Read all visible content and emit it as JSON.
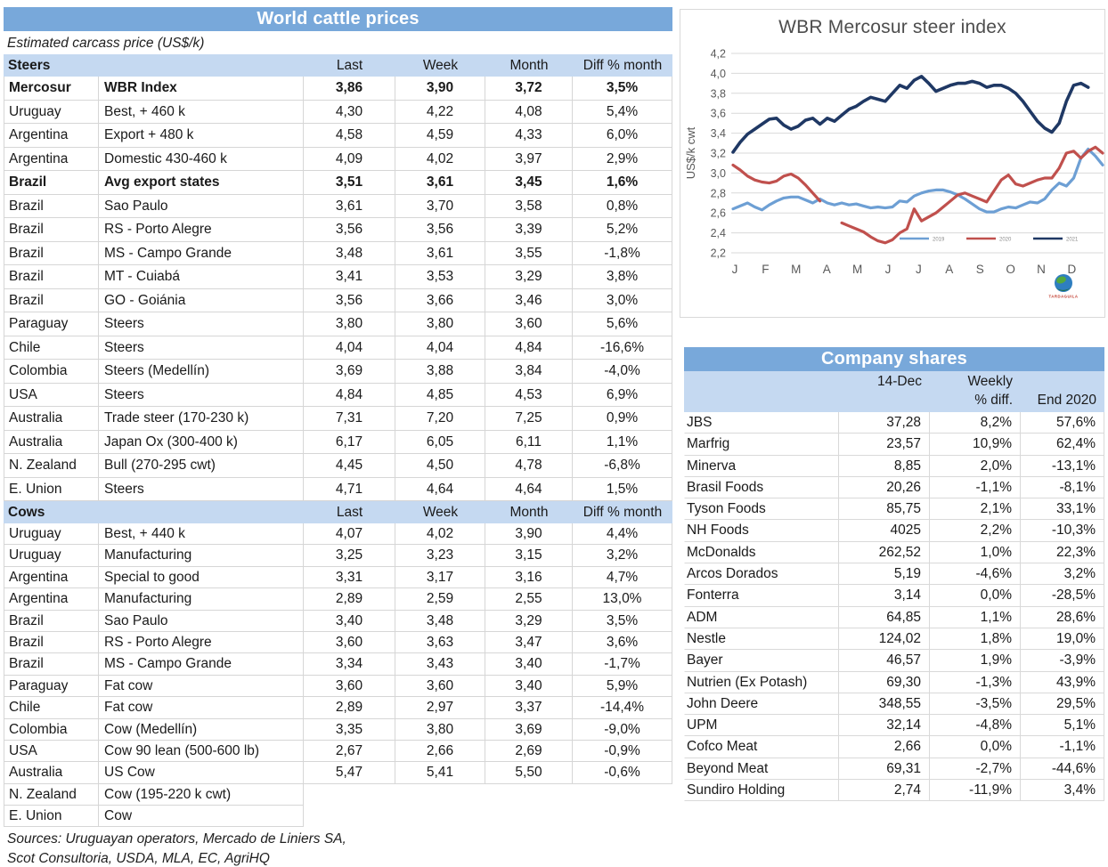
{
  "colors": {
    "title_bar": "#78A8DA",
    "section_header": "#C5D9F1",
    "table_border": "#D6D6D6",
    "chart_grid": "#D9D9D9",
    "chart_text": "#595959",
    "legend_text": "#8A8A8A",
    "logo_caption_color": "#C0392B"
  },
  "cattle": {
    "title": "World cattle prices",
    "subtitle": "Estimated carcass price (US$/k)",
    "value_columns": [
      "Last",
      "Week",
      "Month",
      "Diff % month"
    ],
    "sections": [
      {
        "label": "Steers",
        "rows": [
          {
            "c": "Mercosur",
            "d": "WBR Index",
            "v": [
              "3,86",
              "3,90",
              "3,72",
              "3,5%"
            ],
            "bold": true
          },
          {
            "c": "Uruguay",
            "d": "Best, + 460 k",
            "v": [
              "4,30",
              "4,22",
              "4,08",
              "5,4%"
            ]
          },
          {
            "c": "Argentina",
            "d": "Export + 480 k",
            "v": [
              "4,58",
              "4,59",
              "4,33",
              "6,0%"
            ]
          },
          {
            "c": "Argentina",
            "d": "Domestic 430-460 k",
            "v": [
              "4,09",
              "4,02",
              "3,97",
              "2,9%"
            ]
          },
          {
            "c": "Brazil",
            "d": "Avg export states",
            "v": [
              "3,51",
              "3,61",
              "3,45",
              "1,6%"
            ],
            "bold": true
          },
          {
            "c": "Brazil",
            "d": "Sao Paulo",
            "v": [
              "3,61",
              "3,70",
              "3,58",
              "0,8%"
            ]
          },
          {
            "c": "Brazil",
            "d": "RS - Porto Alegre",
            "v": [
              "3,56",
              "3,56",
              "3,39",
              "5,2%"
            ]
          },
          {
            "c": "Brazil",
            "d": "MS - Campo Grande",
            "v": [
              "3,48",
              "3,61",
              "3,55",
              "-1,8%"
            ]
          },
          {
            "c": "Brazil",
            "d": "MT - Cuiabá",
            "v": [
              "3,41",
              "3,53",
              "3,29",
              "3,8%"
            ]
          },
          {
            "c": "Brazil",
            "d": "GO - Goiánia",
            "v": [
              "3,56",
              "3,66",
              "3,46",
              "3,0%"
            ]
          },
          {
            "c": "Paraguay",
            "d": "Steers",
            "v": [
              "3,80",
              "3,80",
              "3,60",
              "5,6%"
            ]
          },
          {
            "c": "Chile",
            "d": "Steers",
            "v": [
              "4,04",
              "4,04",
              "4,84",
              "-16,6%"
            ]
          },
          {
            "c": "Colombia",
            "d": "Steers (Medellín)",
            "v": [
              "3,69",
              "3,88",
              "3,84",
              "-4,0%"
            ]
          },
          {
            "c": "USA",
            "d": "Steers",
            "v": [
              "4,84",
              "4,85",
              "4,53",
              "6,9%"
            ]
          },
          {
            "c": "Australia",
            "d": "Trade steer (170-230 k)",
            "v": [
              "7,31",
              "7,20",
              "7,25",
              "0,9%"
            ]
          },
          {
            "c": "Australia",
            "d": "Japan Ox (300-400 k)",
            "v": [
              "6,17",
              "6,05",
              "6,11",
              "1,1%"
            ]
          },
          {
            "c": "N. Zealand",
            "d": "Bull (270-295 cwt)",
            "v": [
              "4,45",
              "4,50",
              "4,78",
              "-6,8%"
            ]
          },
          {
            "c": "E. Union",
            "d": "Steers",
            "v": [
              "4,71",
              "4,64",
              "4,64",
              "1,5%"
            ]
          }
        ]
      },
      {
        "label": "Cows",
        "rows": [
          {
            "c": "Uruguay",
            "d": "Best, + 440 k",
            "v": [
              "4,07",
              "4,02",
              "3,90",
              "4,4%"
            ]
          },
          {
            "c": "Uruguay",
            "d": "Manufacturing",
            "v": [
              "3,25",
              "3,23",
              "3,15",
              "3,2%"
            ]
          },
          {
            "c": "Argentina",
            "d": "Special to good",
            "v": [
              "3,31",
              "3,17",
              "3,16",
              "4,7%"
            ]
          },
          {
            "c": "Argentina",
            "d": "Manufacturing",
            "v": [
              "2,89",
              "2,59",
              "2,55",
              "13,0%"
            ]
          },
          {
            "c": "Brazil",
            "d": "Sao Paulo",
            "v": [
              "3,40",
              "3,48",
              "3,29",
              "3,5%"
            ]
          },
          {
            "c": "Brazil",
            "d": "RS - Porto Alegre",
            "v": [
              "3,60",
              "3,63",
              "3,47",
              "3,6%"
            ]
          },
          {
            "c": "Brazil",
            "d": "MS - Campo Grande",
            "v": [
              "3,34",
              "3,43",
              "3,40",
              "-1,7%"
            ]
          },
          {
            "c": "Paraguay",
            "d": "Fat cow",
            "v": [
              "3,60",
              "3,60",
              "3,40",
              "5,9%"
            ]
          },
          {
            "c": "Chile",
            "d": "Fat cow",
            "v": [
              "2,89",
              "2,97",
              "3,37",
              "-14,4%"
            ]
          },
          {
            "c": "Colombia",
            "d": "Cow (Medellín)",
            "v": [
              "3,35",
              "3,80",
              "3,69",
              "-9,0%"
            ]
          },
          {
            "c": "USA",
            "d": "Cow 90 lean (500-600 lb)",
            "v": [
              "2,67",
              "2,66",
              "2,69",
              "-0,9%"
            ]
          },
          {
            "c": "Australia",
            "d": "US Cow",
            "v": [
              "5,47",
              "5,41",
              "5,50",
              "-0,6%"
            ]
          },
          {
            "c": "N. Zealand",
            "d": "Cow (195-220 k cwt)",
            "v": [
              "",
              "",
              "",
              ""
            ],
            "partial": true
          },
          {
            "c": "E. Union",
            "d": "Cow",
            "v": [
              "",
              "",
              "",
              ""
            ],
            "partial": true
          }
        ]
      }
    ],
    "sources": [
      "Sources: Uruguayan operators, Mercado de Liniers SA,",
      "Scot Consultoria, USDA, MLA, EC, AgriHQ"
    ]
  },
  "chart_data": {
    "type": "line",
    "title": "WBR Mercosur steer index",
    "ylabel": "US$/k cwt",
    "ylim": [
      2.2,
      4.2
    ],
    "ytick_step": 0.2,
    "x_labels": [
      "J",
      "F",
      "M",
      "A",
      "M",
      "J",
      "J",
      "A",
      "S",
      "O",
      "N",
      "D"
    ],
    "grid": "horizontal",
    "legend_position": "bottom-right",
    "series": [
      {
        "name": "2019",
        "color": "#6D9FD4",
        "values": [
          2.64,
          2.67,
          2.7,
          2.66,
          2.63,
          2.68,
          2.72,
          2.75,
          2.76,
          2.76,
          2.73,
          2.7,
          2.74,
          2.7,
          2.68,
          2.7,
          2.68,
          2.69,
          2.67,
          2.65,
          2.66,
          2.65,
          2.66,
          2.72,
          2.71,
          2.77,
          2.8,
          2.82,
          2.83,
          2.83,
          2.81,
          2.78,
          2.74,
          2.69,
          2.64,
          2.61,
          2.61,
          2.64,
          2.66,
          2.65,
          2.68,
          2.71,
          2.7,
          2.74,
          2.83,
          2.9,
          2.87,
          2.95,
          3.15,
          3.24,
          3.17,
          3.08
        ]
      },
      {
        "name": "2020",
        "color": "#C0504D",
        "values": [
          3.08,
          3.03,
          2.97,
          2.93,
          2.91,
          2.9,
          2.92,
          2.97,
          2.99,
          2.95,
          2.88,
          2.8,
          2.72,
          null,
          null,
          2.5,
          2.47,
          2.44,
          2.41,
          2.36,
          2.32,
          2.3,
          2.33,
          2.4,
          2.44,
          2.64,
          2.52,
          2.56,
          2.6,
          2.66,
          2.72,
          2.78,
          2.8,
          2.77,
          2.74,
          2.71,
          2.82,
          2.93,
          2.98,
          2.89,
          2.87,
          2.9,
          2.93,
          2.95,
          2.95,
          3.05,
          3.2,
          3.22,
          3.15,
          3.22,
          3.26,
          3.2
        ]
      },
      {
        "name": "2021",
        "color": "#1F3864",
        "values": [
          3.21,
          3.31,
          3.39,
          3.44,
          3.49,
          3.54,
          3.55,
          3.48,
          3.44,
          3.47,
          3.53,
          3.55,
          3.49,
          3.55,
          3.52,
          3.58,
          3.64,
          3.67,
          3.72,
          3.76,
          3.74,
          3.72,
          3.8,
          3.88,
          3.85,
          3.93,
          3.97,
          3.9,
          3.82,
          3.85,
          3.88,
          3.9,
          3.9,
          3.92,
          3.9,
          3.86,
          3.88,
          3.88,
          3.85,
          3.8,
          3.72,
          3.62,
          3.52,
          3.45,
          3.41,
          3.5,
          3.72,
          3.88,
          3.9,
          3.86
        ]
      }
    ]
  },
  "company": {
    "title": "Company shares",
    "headers": {
      "date": "14-Dec",
      "weekly_top": "Weekly",
      "weekly_bottom": "% diff.",
      "end": "End 2020"
    },
    "rows": [
      [
        "JBS",
        "37,28",
        "8,2%",
        "57,6%"
      ],
      [
        "Marfrig",
        "23,57",
        "10,9%",
        "62,4%"
      ],
      [
        "Minerva",
        "8,85",
        "2,0%",
        "-13,1%"
      ],
      [
        "Brasil Foods",
        "20,26",
        "-1,1%",
        "-8,1%"
      ],
      [
        "Tyson Foods",
        "85,75",
        "2,1%",
        "33,1%"
      ],
      [
        "NH Foods",
        "4025",
        "2,2%",
        "-10,3%"
      ],
      [
        "McDonalds",
        "262,52",
        "1,0%",
        "22,3%"
      ],
      [
        "Arcos Dorados",
        "5,19",
        "-4,6%",
        "3,2%"
      ],
      [
        "Fonterra",
        "3,14",
        "0,0%",
        "-28,5%"
      ],
      [
        "ADM",
        "64,85",
        "1,1%",
        "28,6%"
      ],
      [
        "Nestle",
        "124,02",
        "1,8%",
        "19,0%"
      ],
      [
        "Bayer",
        "46,57",
        "1,9%",
        "-3,9%"
      ],
      [
        "Nutrien (Ex Potash)",
        "69,30",
        "-1,3%",
        "43,9%"
      ],
      [
        "John Deere",
        "348,55",
        "-3,5%",
        "29,5%"
      ],
      [
        "UPM",
        "32,14",
        "-4,8%",
        "5,1%"
      ],
      [
        "Cofco Meat",
        "2,66",
        "0,0%",
        "-1,1%"
      ],
      [
        "Beyond Meat",
        "69,31",
        "-2,7%",
        "-44,6%"
      ],
      [
        "Sundiro Holding",
        "2,74",
        "-11,9%",
        "3,4%"
      ]
    ]
  },
  "logo": {
    "caption": "TARDAGUILA"
  }
}
